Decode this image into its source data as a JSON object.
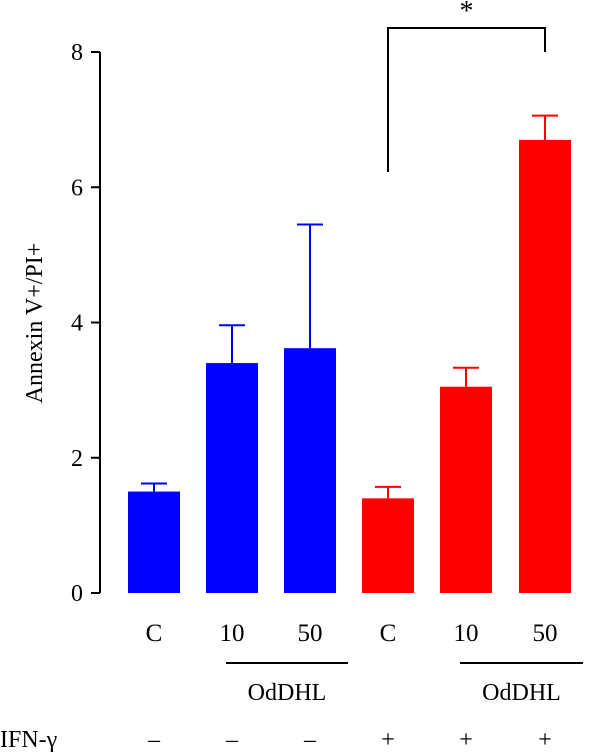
{
  "chart_data": {
    "type": "bar",
    "ylabel": "Annexin V+/PI+",
    "ylim": [
      0,
      8
    ],
    "yticks": [
      0,
      2,
      4,
      6,
      8
    ],
    "categories": [
      "C",
      "10",
      "50",
      "C",
      "10",
      "50"
    ],
    "values": [
      1.5,
      3.4,
      3.62,
      1.4,
      3.05,
      6.7
    ],
    "errors": [
      0.12,
      0.56,
      1.83,
      0.17,
      0.28,
      0.36
    ],
    "colors": [
      "#0000ff",
      "#0000ff",
      "#0000ff",
      "#ff0000",
      "#ff0000",
      "#ff0000"
    ],
    "group_labels": [
      "OdDHL",
      "OdDHL"
    ],
    "treatment_label": "IFN-γ",
    "treatment_signs": [
      "–",
      "–",
      "–",
      "+",
      "+",
      "+"
    ],
    "significance": {
      "from": 3,
      "to": 5,
      "label": "*"
    },
    "grid": false
  }
}
